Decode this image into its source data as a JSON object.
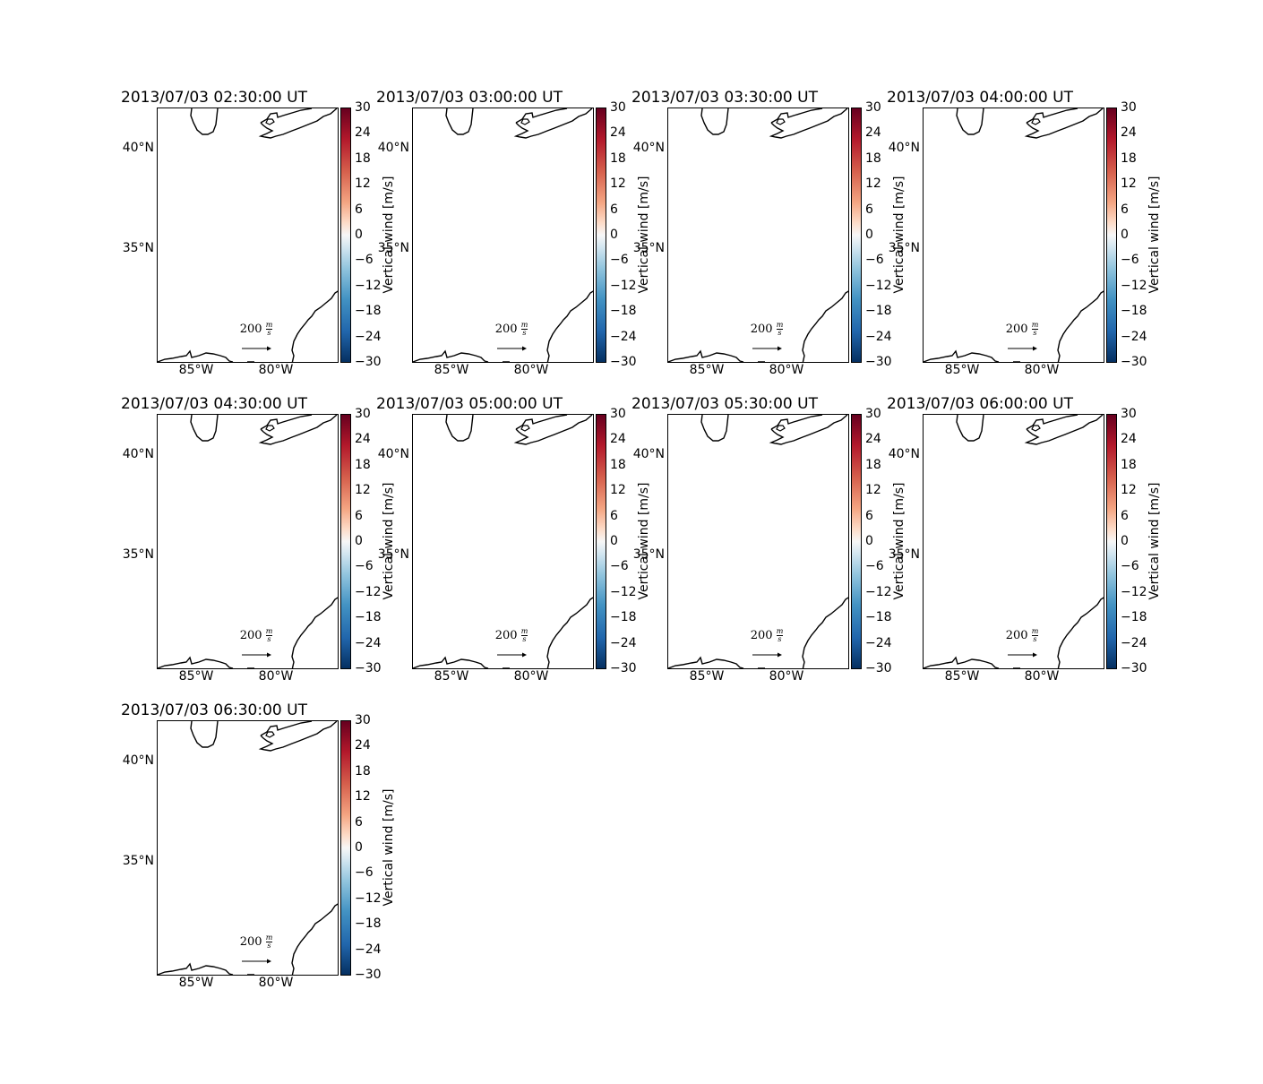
{
  "colorbar": {
    "label": "Vertical wind [m/s]",
    "ticks": [
      "30",
      "24",
      "18",
      "12",
      "6",
      "0",
      "−6",
      "−12",
      "−18",
      "−24",
      "−30"
    ],
    "colormap": "RdBu_r",
    "colors": [
      "#67001f",
      "#b2182b",
      "#d6604d",
      "#f4a582",
      "#fddbc7",
      "#f7f7f7",
      "#d1e5f0",
      "#92c5de",
      "#4393c3",
      "#2166ac",
      "#053061"
    ]
  },
  "axes": {
    "lat_labels": [
      "40°N",
      "35°N"
    ],
    "lon_labels": [
      "85°W",
      "80°W"
    ]
  },
  "quiver_key": {
    "value": "200",
    "unit_numerator": "m",
    "unit_denominator": "s"
  },
  "panels": [
    {
      "title": "2013/07/03 02:30:00 UT"
    },
    {
      "title": "2013/07/03 03:00:00 UT"
    },
    {
      "title": "2013/07/03 03:30:00 UT"
    },
    {
      "title": "2013/07/03 04:00:00 UT"
    },
    {
      "title": "2013/07/03 04:30:00 UT"
    },
    {
      "title": "2013/07/03 05:00:00 UT"
    },
    {
      "title": "2013/07/03 05:30:00 UT"
    },
    {
      "title": "2013/07/03 06:00:00 UT"
    },
    {
      "title": "2013/07/03 06:30:00 UT"
    }
  ]
}
